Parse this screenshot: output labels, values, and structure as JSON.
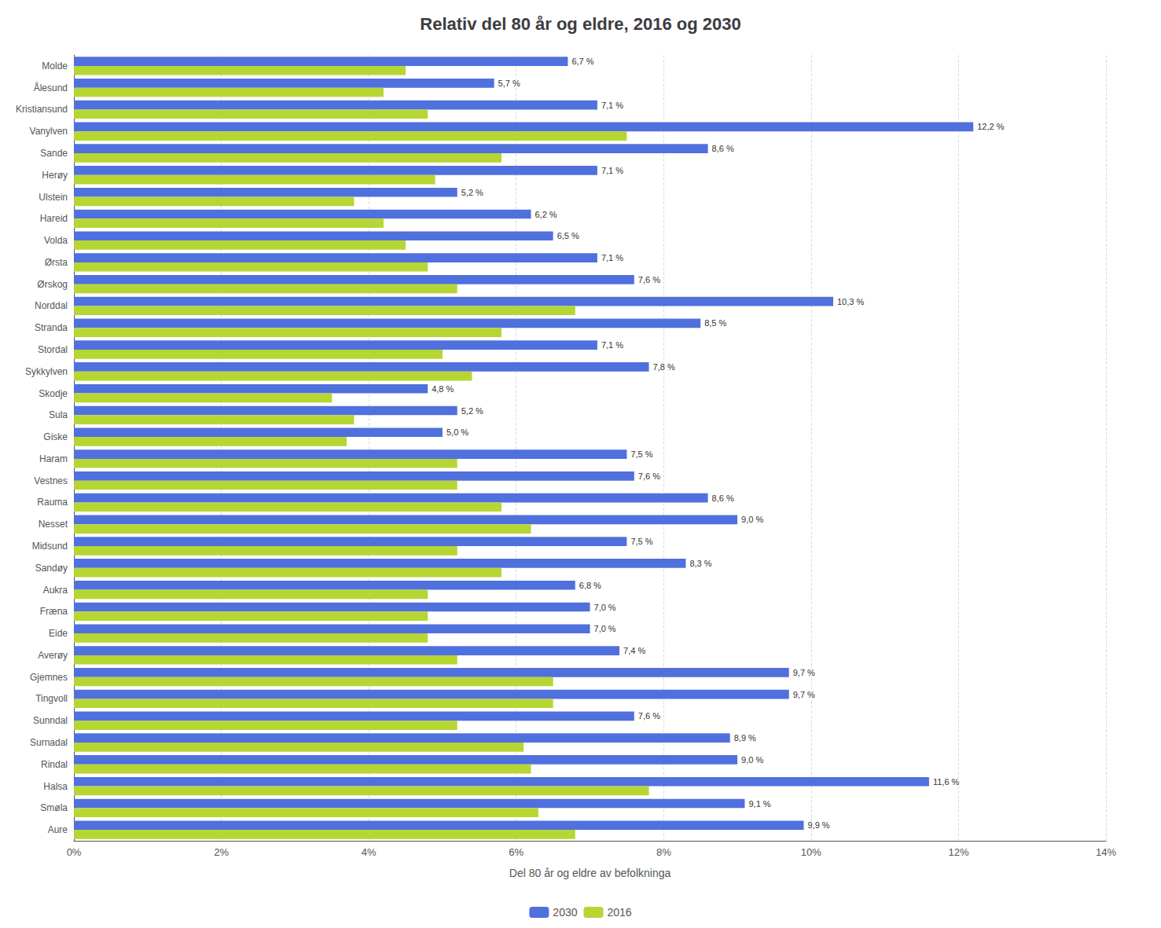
{
  "chart_data": {
    "type": "bar",
    "orientation": "horizontal",
    "title": "Relativ del 80 år og eldre, 2016 og 2030",
    "xlabel": "Del 80 år og eldre av befolkninga",
    "categories": [
      "Molde",
      "Ålesund",
      "Kristiansund",
      "Vanylven",
      "Sande",
      "Herøy",
      "Ulstein",
      "Hareid",
      "Volda",
      "Ørsta",
      "Ørskog",
      "Norddal",
      "Stranda",
      "Stordal",
      "Sykkylven",
      "Skodje",
      "Sula",
      "Giske",
      "Haram",
      "Vestnes",
      "Rauma",
      "Nesset",
      "Midsund",
      "Sandøy",
      "Aukra",
      "Fræna",
      "Eide",
      "Averøy",
      "Gjemnes",
      "Tingvoll",
      "Sunndal",
      "Surnadal",
      "Rindal",
      "Halsa",
      "Smøla",
      "Aure"
    ],
    "series": [
      {
        "name": "2030",
        "values": [
          6.7,
          5.7,
          7.1,
          12.2,
          8.6,
          7.1,
          5.2,
          6.2,
          6.5,
          7.1,
          7.6,
          10.3,
          8.5,
          7.1,
          7.8,
          4.8,
          5.2,
          5.0,
          7.5,
          7.6,
          8.6,
          9.0,
          7.5,
          8.3,
          6.8,
          7.0,
          7.0,
          7.4,
          9.7,
          9.7,
          7.6,
          8.9,
          9.0,
          11.6,
          9.1,
          9.9
        ],
        "data_labels": true,
        "value_labels": [
          "6,7 %",
          "5,7 %",
          "7,1 %",
          "12,2 %",
          "8,6 %",
          "7,1 %",
          "5,2 %",
          "6,2 %",
          "6,5 %",
          "7,1 %",
          "7,6 %",
          "10,3 %",
          "8,5 %",
          "7,1 %",
          "7,8 %",
          "4,8 %",
          "5,2 %",
          "5,0 %",
          "7,5 %",
          "7,6 %",
          "8,6 %",
          "9,0 %",
          "7,5 %",
          "8,3 %",
          "6,8 %",
          "7,0 %",
          "7,0 %",
          "7,4 %",
          "9,7 %",
          "9,7 %",
          "7,6 %",
          "8,9 %",
          "9,0 %",
          "11,6 %",
          "9,1 %",
          "9,9 %"
        ]
      },
      {
        "name": "2016",
        "values": [
          4.5,
          4.2,
          4.8,
          7.5,
          5.8,
          4.9,
          3.8,
          4.2,
          4.5,
          4.8,
          5.2,
          6.8,
          5.8,
          5.0,
          5.4,
          3.5,
          3.8,
          3.7,
          5.2,
          5.2,
          5.8,
          6.2,
          5.2,
          5.8,
          4.8,
          4.8,
          4.8,
          5.2,
          6.5,
          6.5,
          5.2,
          6.1,
          6.2,
          7.8,
          6.3,
          6.8
        ]
      }
    ],
    "xlim": [
      0,
      14
    ],
    "xticks": [
      {
        "value": 0,
        "label": "0%"
      },
      {
        "value": 2,
        "label": "2%"
      },
      {
        "value": 4,
        "label": "4%"
      },
      {
        "value": 6,
        "label": "6%"
      },
      {
        "value": 8,
        "label": "8%"
      },
      {
        "value": 10,
        "label": "10%"
      },
      {
        "value": 12,
        "label": "12%"
      },
      {
        "value": 14,
        "label": "14%"
      }
    ],
    "grid": true,
    "legend": "bottom"
  }
}
